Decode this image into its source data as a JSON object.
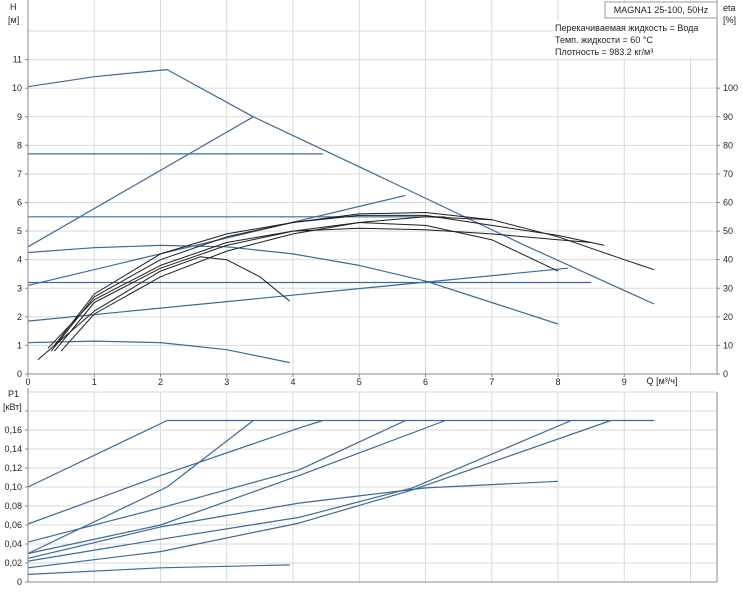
{
  "title": "MAGNA1 25-100, 50Hz",
  "info": [
    "Перекачиваемая жидкость = Вода",
    "Темп. жидкости = 60 °C",
    "Плотность = 983.2 кг/м³"
  ],
  "colors": {
    "head_lines": "#3d6a96",
    "eta_lines": "#1e1e1e",
    "grid": "#d9d9d9",
    "axis": "#888888"
  },
  "chart_data": [
    {
      "type": "line",
      "ylabel": "H",
      "yunit": "[м]",
      "y2label": "eta",
      "y2unit": "[%]",
      "xlabel": "Q",
      "xunit": "[м³/ч]",
      "xlim": [
        0,
        10.4
      ],
      "ylim": [
        0,
        12
      ],
      "y2lim": [
        0,
        120
      ],
      "xticks": [
        "0",
        "1",
        "2",
        "3",
        "4",
        "5",
        "6",
        "7",
        "8",
        "9"
      ],
      "yticks": [
        "0",
        "1",
        "2",
        "3",
        "4",
        "5",
        "6",
        "7",
        "8",
        "9",
        "10",
        "11"
      ],
      "y2ticks": [
        "0",
        "10",
        "20",
        "30",
        "40",
        "50",
        "60",
        "70",
        "80",
        "90",
        "100"
      ],
      "grid": true,
      "head_series": [
        [
          [
            0,
            10.05
          ],
          [
            1,
            10.4
          ],
          [
            2.1,
            10.65
          ],
          [
            3.4,
            9.0
          ],
          [
            5.5,
            6.7
          ],
          [
            7.5,
            4.5
          ],
          [
            9.45,
            2.45
          ]
        ],
        [
          [
            0,
            4.45
          ],
          [
            3.4,
            9.0
          ]
        ],
        [
          [
            0,
            7.7
          ],
          [
            4.45,
            7.7
          ]
        ],
        [
          [
            0,
            3.1
          ],
          [
            5.7,
            6.25
          ]
        ],
        [
          [
            0,
            5.5
          ],
          [
            6.3,
            5.5
          ]
        ],
        [
          [
            0,
            4.25
          ],
          [
            1,
            4.42
          ],
          [
            2,
            4.5
          ],
          [
            3,
            4.45
          ],
          [
            4,
            4.2
          ],
          [
            5,
            3.8
          ],
          [
            6,
            3.25
          ],
          [
            7,
            2.5
          ],
          [
            8,
            1.75
          ]
        ],
        [
          [
            0,
            3.2
          ],
          [
            8.5,
            3.2
          ]
        ],
        [
          [
            0,
            1.85
          ],
          [
            8.15,
            3.7
          ]
        ],
        [
          [
            0,
            1.1
          ],
          [
            1,
            1.15
          ],
          [
            2,
            1.1
          ],
          [
            3,
            0.85
          ],
          [
            3.95,
            0.4
          ]
        ]
      ],
      "eta_series": [
        [
          [
            0.35,
            8
          ],
          [
            1,
            27
          ],
          [
            2,
            40
          ],
          [
            3,
            48
          ],
          [
            4,
            53
          ],
          [
            5,
            56
          ],
          [
            6,
            56.5
          ],
          [
            7,
            54
          ],
          [
            8,
            48
          ],
          [
            9,
            40
          ],
          [
            9.45,
            36.5
          ]
        ],
        [
          [
            0.4,
            10
          ],
          [
            1,
            28
          ],
          [
            2,
            42
          ],
          [
            3,
            49
          ],
          [
            4,
            53
          ],
          [
            5,
            55.5
          ],
          [
            6,
            55.5
          ],
          [
            7,
            52
          ],
          [
            8,
            48.5
          ],
          [
            8.7,
            45
          ]
        ],
        [
          [
            0.3,
            9
          ],
          [
            1,
            26
          ],
          [
            2,
            38
          ],
          [
            3,
            46
          ],
          [
            4,
            50
          ],
          [
            5,
            51
          ],
          [
            6,
            50.5
          ],
          [
            7,
            49
          ],
          [
            8,
            47
          ],
          [
            8.5,
            46
          ]
        ],
        [
          [
            0.4,
            8
          ],
          [
            1,
            25
          ],
          [
            2,
            37
          ],
          [
            3,
            45
          ],
          [
            4,
            50
          ],
          [
            5,
            53
          ],
          [
            6,
            52
          ],
          [
            7,
            47
          ],
          [
            8,
            36
          ]
        ],
        [
          [
            0.5,
            8
          ],
          [
            1,
            21
          ],
          [
            2,
            34
          ],
          [
            3,
            43
          ],
          [
            4,
            49
          ],
          [
            5,
            53
          ],
          [
            6,
            55
          ],
          [
            7,
            54
          ]
        ],
        [
          [
            0.15,
            5
          ],
          [
            1,
            22
          ],
          [
            2,
            36
          ],
          [
            2.6,
            41
          ],
          [
            3,
            40
          ],
          [
            3.5,
            34
          ],
          [
            3.95,
            25.5
          ]
        ]
      ]
    },
    {
      "type": "line",
      "ylabel": "P1",
      "yunit": "[кВт]",
      "xlim": [
        0,
        10.4
      ],
      "ylim": [
        0,
        0.2
      ],
      "yticks": [
        "0",
        "0,02",
        "0,04",
        "0,06",
        "0,08",
        "0,10",
        "0,12",
        "0,14",
        "0,16"
      ],
      "grid": true,
      "series": [
        [
          [
            0,
            0.1
          ],
          [
            2.1,
            0.17
          ],
          [
            9.45,
            0.17
          ]
        ],
        [
          [
            0,
            0.03
          ],
          [
            2.1,
            0.1
          ],
          [
            3.4,
            0.17
          ]
        ],
        [
          [
            0,
            0.061
          ],
          [
            2,
            0.112
          ],
          [
            4.09,
            0.162
          ],
          [
            4.45,
            0.17
          ]
        ],
        [
          [
            0,
            0.042
          ],
          [
            2,
            0.078
          ],
          [
            4.09,
            0.118
          ],
          [
            5.7,
            0.17
          ]
        ],
        [
          [
            0,
            0.03
          ],
          [
            2,
            0.06
          ],
          [
            4.09,
            0.112
          ],
          [
            6.3,
            0.17
          ]
        ],
        [
          [
            0,
            0.025
          ],
          [
            2,
            0.058
          ],
          [
            4.09,
            0.083
          ],
          [
            6,
            0.099
          ],
          [
            8,
            0.106
          ]
        ],
        [
          [
            0,
            0.022
          ],
          [
            2,
            0.045
          ],
          [
            4.09,
            0.068
          ],
          [
            5.8,
            0.099
          ],
          [
            8.2,
            0.17
          ]
        ],
        [
          [
            0,
            0.015
          ],
          [
            2,
            0.032
          ],
          [
            4.09,
            0.062
          ],
          [
            5.8,
            0.097
          ],
          [
            8.8,
            0.17
          ]
        ],
        [
          [
            0,
            0.008
          ],
          [
            2,
            0.015
          ],
          [
            3.95,
            0.018
          ]
        ]
      ]
    }
  ]
}
